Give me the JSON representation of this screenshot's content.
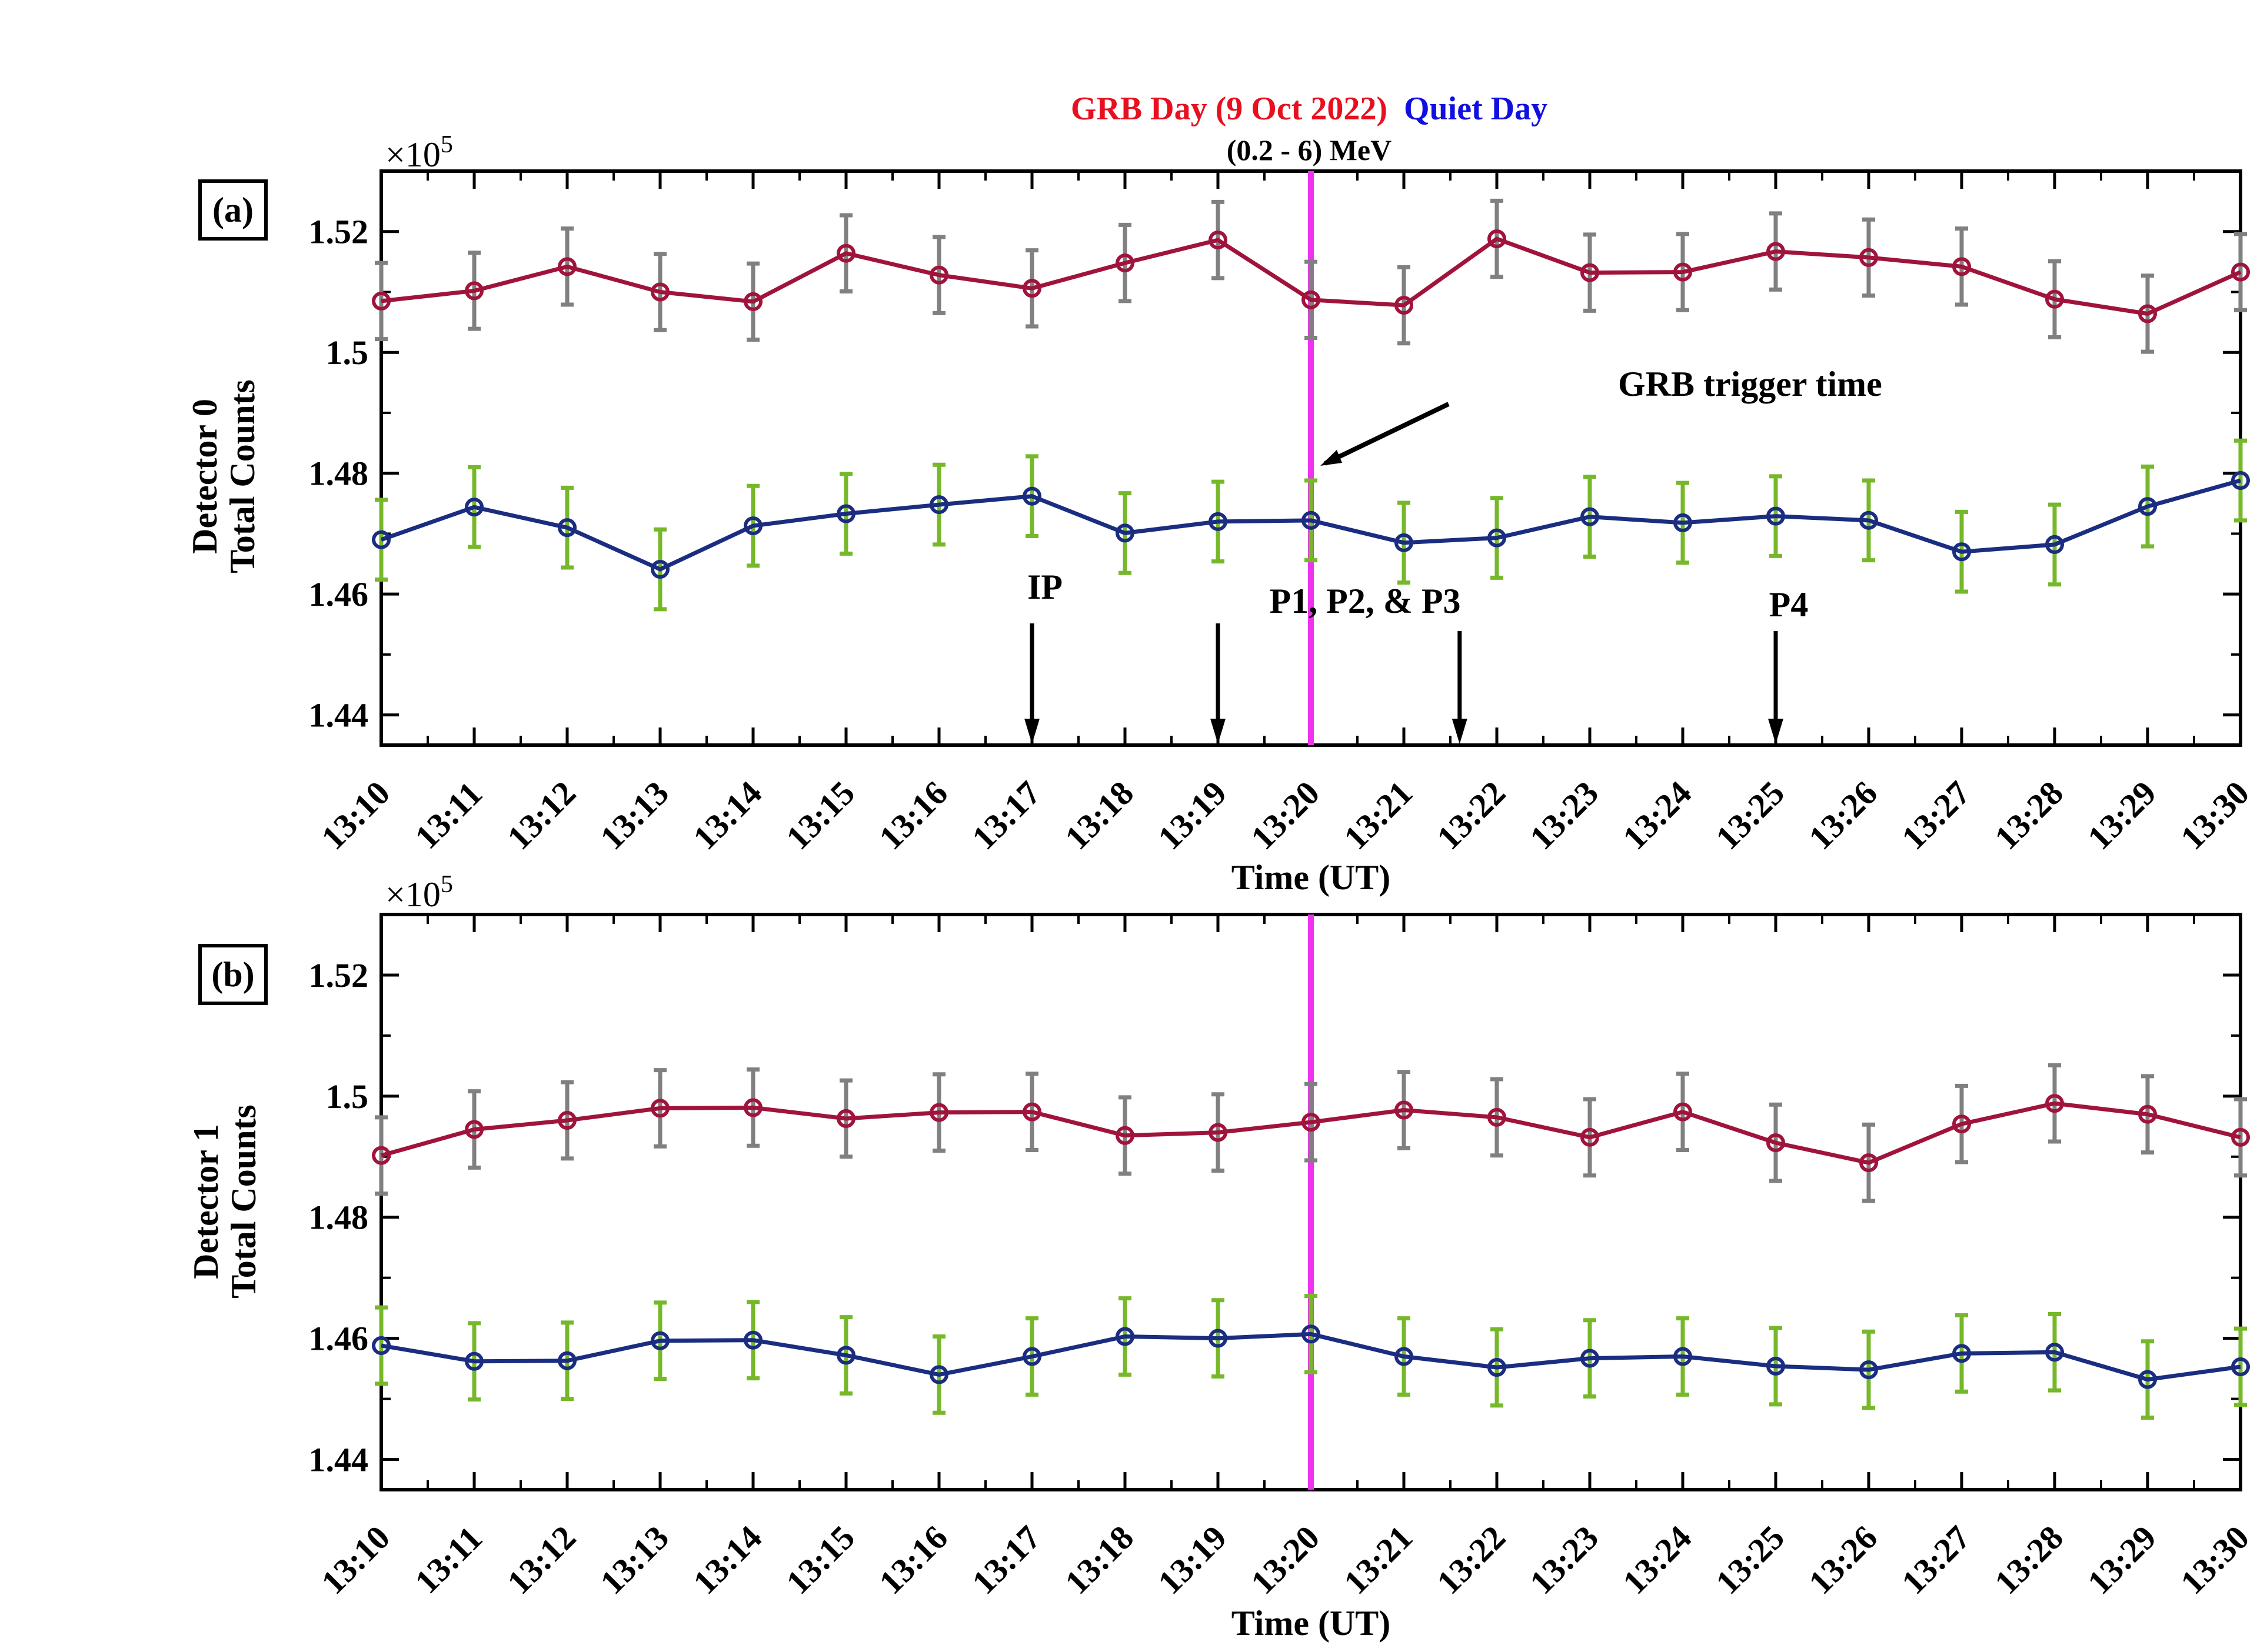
{
  "title": {
    "grb_label": "GRB Day (9 Oct 2022)",
    "quiet_label": "Quiet Day",
    "energy_range": "(0.2 - 6) MeV",
    "grb_color": "#e8101e",
    "quiet_color": "#1010e0"
  },
  "chart_data": [
    {
      "type": "line",
      "panel": "(a)",
      "ylabel_line1": "Detector 0",
      "ylabel_line2": "Total Counts",
      "xlabel": "Time (UT)",
      "exponent_base": "×10",
      "exponent_power": "5",
      "categories": [
        "13:10",
        "13:11",
        "13:12",
        "13:13",
        "13:14",
        "13:15",
        "13:16",
        "13:17",
        "13:18",
        "13:19",
        "13:20",
        "13:21",
        "13:22",
        "13:23",
        "13:24",
        "13:25",
        "13:26",
        "13:27",
        "13:28",
        "13:29",
        "13:30"
      ],
      "ylim": [
        1.435,
        1.53
      ],
      "yticks": [
        1.44,
        1.46,
        1.48,
        1.5,
        1.52
      ],
      "ytick_labels": [
        "1.44",
        "1.46",
        "1.48",
        "1.5",
        "1.52"
      ],
      "grb_trigger_index": 10,
      "series": [
        {
          "name": "GRB Day (9 Oct 2022)",
          "color": "#a0143c",
          "errcolor": "#808080",
          "values": [
            1.5085,
            1.5102,
            1.5142,
            1.51,
            1.5084,
            1.5164,
            1.5128,
            1.5106,
            1.5148,
            1.5186,
            1.5087,
            1.5078,
            1.5188,
            1.5132,
            1.5133,
            1.5167,
            1.5157,
            1.5142,
            1.5088,
            1.5064,
            1.5133
          ],
          "error": 0.0063
        },
        {
          "name": "Quiet Day",
          "color": "#1a2d80",
          "errcolor": "#76b82a",
          "values": [
            1.469,
            1.4744,
            1.471,
            1.4641,
            1.4713,
            1.4733,
            1.4748,
            1.4762,
            1.4701,
            1.472,
            1.4722,
            1.4685,
            1.4693,
            1.4728,
            1.4718,
            1.4729,
            1.4722,
            1.467,
            1.4682,
            1.4745,
            1.4788
          ],
          "error": 0.0066
        }
      ],
      "annotations": {
        "trigger_text": "GRB trigger time",
        "ip_label": "IP",
        "p123_label": "P1, P2, & P3",
        "p4_label": "P4",
        "arrow_times": [
          7,
          9,
          11.6,
          15
        ]
      }
    },
    {
      "type": "line",
      "panel": "(b)",
      "ylabel_line1": "Detector 1",
      "ylabel_line2": "Total Counts",
      "xlabel": "Time (UT)",
      "exponent_base": "×10",
      "exponent_power": "5",
      "categories": [
        "13:10",
        "13:11",
        "13:12",
        "13:13",
        "13:14",
        "13:15",
        "13:16",
        "13:17",
        "13:18",
        "13:19",
        "13:20",
        "13:21",
        "13:22",
        "13:23",
        "13:24",
        "13:25",
        "13:26",
        "13:27",
        "13:28",
        "13:29",
        "13:30"
      ],
      "ylim": [
        1.435,
        1.53
      ],
      "yticks": [
        1.44,
        1.46,
        1.48,
        1.5,
        1.52
      ],
      "ytick_labels": [
        "1.44",
        "1.46",
        "1.48",
        "1.5",
        "1.52"
      ],
      "grb_trigger_index": 10,
      "series": [
        {
          "name": "GRB Day (9 Oct 2022)",
          "color": "#a0143c",
          "errcolor": "#808080",
          "values": [
            1.4902,
            1.4945,
            1.496,
            1.498,
            1.4981,
            1.4963,
            1.4973,
            1.4974,
            1.4935,
            1.494,
            1.4957,
            1.4977,
            1.4965,
            1.4932,
            1.4974,
            1.4923,
            1.489,
            1.4954,
            1.4988,
            1.497,
            1.4932
          ],
          "error": 0.0063
        },
        {
          "name": "Quiet Day",
          "color": "#1a2d80",
          "errcolor": "#76b82a",
          "values": [
            1.4588,
            1.4562,
            1.4563,
            1.4596,
            1.4597,
            1.4572,
            1.454,
            1.457,
            1.4603,
            1.46,
            1.4607,
            1.457,
            1.4552,
            1.4567,
            1.457,
            1.4554,
            1.4548,
            1.4575,
            1.4577,
            1.4532,
            1.4553
          ],
          "error": 0.0063
        }
      ],
      "annotations": {}
    }
  ]
}
